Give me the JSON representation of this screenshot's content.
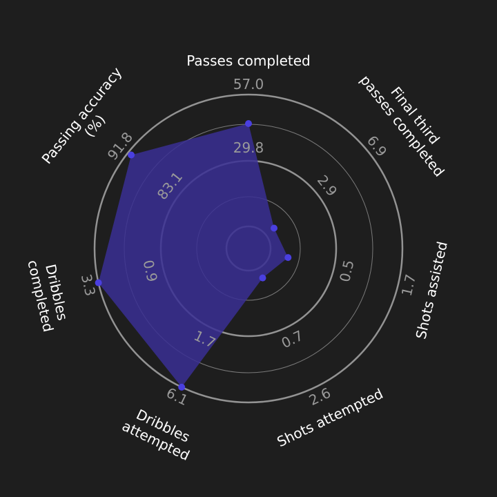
{
  "chart_data": {
    "type": "radar",
    "axes": [
      {
        "label_lines": [
          "Passes completed"
        ],
        "inner_tick": "29.8",
        "outer_tick": "57.0",
        "value_fraction": 0.78
      },
      {
        "label_lines": [
          "Final third",
          "passes completed"
        ],
        "inner_tick": "2.9",
        "outer_tick": "6.9",
        "value_fraction": 0.08
      },
      {
        "label_lines": [
          "Shots assisted"
        ],
        "inner_tick": "0.5",
        "outer_tick": "1.7",
        "value_fraction": 0.14
      },
      {
        "label_lines": [
          "Shots attempted"
        ],
        "inner_tick": "0.7",
        "outer_tick": "2.6",
        "value_fraction": 0.08
      },
      {
        "label_lines": [
          "Dribbles",
          "attempted"
        ],
        "inner_tick": "1.7",
        "outer_tick": "6.1",
        "value_fraction": 1.0
      },
      {
        "label_lines": [
          "Dribbles",
          "completed"
        ],
        "inner_tick": "0.9",
        "outer_tick": "3.3",
        "value_fraction": 1.0
      },
      {
        "label_lines": [
          "Passing accuracy",
          "(%)"
        ],
        "inner_tick": "83.1",
        "outer_tick": "91.8",
        "value_fraction": 0.97
      }
    ],
    "fill_color": "#3a2f94",
    "point_color": "#4a3fe0",
    "ring_color": "#9a9a9a",
    "background": "#1e1e1e"
  }
}
